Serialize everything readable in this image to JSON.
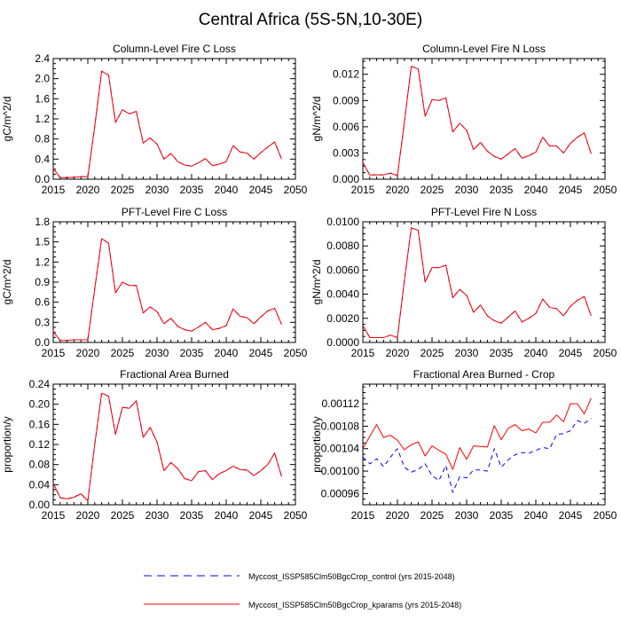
{
  "figure_title": "Central Africa (5S-5N,10-30E)",
  "legend": [
    {
      "label": "Myccost_ISSP585Clm50BgcCrop_control (yrs 2015-2048)",
      "color": "#0000ff",
      "style": "dashed"
    },
    {
      "label": "Myccost_ISSP585Clm50BgcCrop_kparams (yrs 2015-2048)",
      "color": "#ff0000",
      "style": "solid"
    }
  ],
  "chart_data": [
    {
      "type": "line",
      "title": "Column-Level Fire C Loss",
      "xlabel": "",
      "ylabel": "gC/m^2/d",
      "xlim": [
        2015,
        2050
      ],
      "ylim": [
        0,
        2.4
      ],
      "xticks": [
        "2015",
        "2020",
        "2025",
        "2030",
        "2035",
        "2040",
        "2045",
        "2050"
      ],
      "yticks": [
        "0.0",
        "0.4",
        "0.8",
        "1.2",
        "1.6",
        "2.0",
        "2.4"
      ],
      "x": [
        2015,
        2016,
        2017,
        2018,
        2019,
        2020,
        2021,
        2022,
        2023,
        2024,
        2025,
        2026,
        2027,
        2028,
        2029,
        2030,
        2031,
        2032,
        2033,
        2034,
        2035,
        2036,
        2037,
        2038,
        2039,
        2040,
        2041,
        2042,
        2043,
        2044,
        2045,
        2046,
        2047,
        2048
      ],
      "series": [
        {
          "name": "control",
          "color": "#0000ff",
          "style": "dashed",
          "values": [
            0.22,
            0.03,
            0.03,
            0.04,
            0.05,
            0.05,
            1.05,
            2.15,
            2.07,
            1.13,
            1.38,
            1.3,
            1.35,
            0.72,
            0.82,
            0.7,
            0.4,
            0.51,
            0.35,
            0.28,
            0.26,
            0.33,
            0.41,
            0.27,
            0.3,
            0.35,
            0.67,
            0.54,
            0.52,
            0.4,
            0.53,
            0.64,
            0.74,
            0.4
          ]
        },
        {
          "name": "kparams",
          "color": "#ff0000",
          "style": "solid",
          "values": [
            0.22,
            0.03,
            0.03,
            0.04,
            0.05,
            0.05,
            1.05,
            2.15,
            2.07,
            1.13,
            1.38,
            1.3,
            1.35,
            0.72,
            0.82,
            0.7,
            0.4,
            0.51,
            0.35,
            0.28,
            0.26,
            0.33,
            0.41,
            0.27,
            0.3,
            0.35,
            0.67,
            0.54,
            0.52,
            0.4,
            0.53,
            0.64,
            0.74,
            0.4
          ]
        }
      ]
    },
    {
      "type": "line",
      "title": "Column-Level Fire N Loss",
      "xlabel": "",
      "ylabel": "gN/m^2/d",
      "xlim": [
        2015,
        2050
      ],
      "ylim": [
        0,
        0.0138
      ],
      "xticks": [
        "2015",
        "2020",
        "2025",
        "2030",
        "2035",
        "2040",
        "2045",
        "2050"
      ],
      "yticks": [
        "0.000",
        "0.003",
        "0.006",
        "0.009",
        "0.012"
      ],
      "x": [
        2015,
        2016,
        2017,
        2018,
        2019,
        2020,
        2021,
        2022,
        2023,
        2024,
        2025,
        2026,
        2027,
        2028,
        2029,
        2030,
        2031,
        2032,
        2033,
        2034,
        2035,
        2036,
        2037,
        2038,
        2039,
        2040,
        2041,
        2042,
        2043,
        2044,
        2045,
        2046,
        2047,
        2048
      ],
      "series": [
        {
          "name": "control",
          "color": "#0000ff",
          "style": "dashed",
          "values": [
            0.0019,
            0.0005,
            0.0005,
            0.0005,
            0.0007,
            0.0004,
            0.0065,
            0.0129,
            0.0126,
            0.0072,
            0.0091,
            0.009,
            0.0093,
            0.0054,
            0.0064,
            0.0056,
            0.0034,
            0.0042,
            0.0032,
            0.0026,
            0.0023,
            0.0029,
            0.0035,
            0.0024,
            0.0027,
            0.0031,
            0.0048,
            0.0038,
            0.0038,
            0.003,
            0.0041,
            0.0048,
            0.0053,
            0.0029
          ]
        },
        {
          "name": "kparams",
          "color": "#ff0000",
          "style": "solid",
          "values": [
            0.0019,
            0.0005,
            0.0005,
            0.0005,
            0.0007,
            0.0004,
            0.0065,
            0.0129,
            0.0126,
            0.0072,
            0.0091,
            0.009,
            0.0093,
            0.0054,
            0.0064,
            0.0056,
            0.0034,
            0.0042,
            0.0032,
            0.0026,
            0.0023,
            0.0029,
            0.0035,
            0.0024,
            0.0027,
            0.0031,
            0.0048,
            0.0038,
            0.0038,
            0.003,
            0.0041,
            0.0048,
            0.0053,
            0.0029
          ]
        }
      ]
    },
    {
      "type": "line",
      "title": "PFT-Level Fire C Loss",
      "xlabel": "",
      "ylabel": "gC/m^2/d",
      "xlim": [
        2015,
        2050
      ],
      "ylim": [
        0,
        1.8
      ],
      "xticks": [
        "2015",
        "2020",
        "2025",
        "2030",
        "2035",
        "2040",
        "2045",
        "2050"
      ],
      "yticks": [
        "0.0",
        "0.3",
        "0.6",
        "0.9",
        "1.2",
        "1.5",
        "1.8"
      ],
      "x": [
        2015,
        2016,
        2017,
        2018,
        2019,
        2020,
        2021,
        2022,
        2023,
        2024,
        2025,
        2026,
        2027,
        2028,
        2029,
        2030,
        2031,
        2032,
        2033,
        2034,
        2035,
        2036,
        2037,
        2038,
        2039,
        2040,
        2041,
        2042,
        2043,
        2044,
        2045,
        2046,
        2047,
        2048
      ],
      "series": [
        {
          "name": "control",
          "color": "#0000ff",
          "style": "dashed",
          "values": [
            0.16,
            0.03,
            0.03,
            0.04,
            0.04,
            0.04,
            0.8,
            1.55,
            1.48,
            0.74,
            0.9,
            0.85,
            0.85,
            0.44,
            0.53,
            0.46,
            0.28,
            0.36,
            0.24,
            0.19,
            0.17,
            0.23,
            0.3,
            0.19,
            0.21,
            0.25,
            0.5,
            0.39,
            0.37,
            0.28,
            0.38,
            0.47,
            0.51,
            0.27
          ]
        },
        {
          "name": "kparams",
          "color": "#ff0000",
          "style": "solid",
          "values": [
            0.16,
            0.03,
            0.03,
            0.04,
            0.04,
            0.04,
            0.8,
            1.55,
            1.48,
            0.74,
            0.9,
            0.85,
            0.85,
            0.44,
            0.53,
            0.46,
            0.28,
            0.36,
            0.24,
            0.19,
            0.17,
            0.23,
            0.3,
            0.19,
            0.21,
            0.25,
            0.5,
            0.39,
            0.37,
            0.28,
            0.38,
            0.47,
            0.51,
            0.27
          ]
        }
      ]
    },
    {
      "type": "line",
      "title": "PFT-Level Fire N Loss",
      "xlabel": "",
      "ylabel": "gN/m^2/d",
      "xlim": [
        2015,
        2050
      ],
      "ylim": [
        0,
        0.01
      ],
      "xticks": [
        "2015",
        "2020",
        "2025",
        "2030",
        "2035",
        "2040",
        "2045",
        "2050"
      ],
      "yticks": [
        "0.0000",
        "0.0020",
        "0.0040",
        "0.0060",
        "0.0080",
        "0.0100"
      ],
      "x": [
        2015,
        2016,
        2017,
        2018,
        2019,
        2020,
        2021,
        2022,
        2023,
        2024,
        2025,
        2026,
        2027,
        2028,
        2029,
        2030,
        2031,
        2032,
        2033,
        2034,
        2035,
        2036,
        2037,
        2038,
        2039,
        2040,
        2041,
        2042,
        2043,
        2044,
        2045,
        2046,
        2047,
        2048
      ],
      "series": [
        {
          "name": "control",
          "color": "#0000ff",
          "style": "dashed",
          "values": [
            0.0014,
            0.0004,
            0.0004,
            0.0004,
            0.0006,
            0.0004,
            0.0051,
            0.0095,
            0.0093,
            0.005,
            0.0062,
            0.0062,
            0.0064,
            0.0037,
            0.0044,
            0.0039,
            0.0025,
            0.0031,
            0.0022,
            0.0018,
            0.0016,
            0.0021,
            0.0026,
            0.0017,
            0.002,
            0.0024,
            0.0036,
            0.0029,
            0.0028,
            0.0022,
            0.003,
            0.0035,
            0.0038,
            0.0022
          ]
        },
        {
          "name": "kparams",
          "color": "#ff0000",
          "style": "solid",
          "values": [
            0.0014,
            0.0004,
            0.0004,
            0.0004,
            0.0006,
            0.0004,
            0.0051,
            0.0095,
            0.0093,
            0.005,
            0.0062,
            0.0062,
            0.0064,
            0.0037,
            0.0044,
            0.0039,
            0.0025,
            0.0031,
            0.0022,
            0.0018,
            0.0016,
            0.0021,
            0.0026,
            0.0017,
            0.002,
            0.0024,
            0.0036,
            0.0029,
            0.0028,
            0.0022,
            0.003,
            0.0035,
            0.0038,
            0.0022
          ]
        }
      ]
    },
    {
      "type": "line",
      "title": "Fractional Area Burned",
      "xlabel": "",
      "ylabel": "proportion/y",
      "xlim": [
        2015,
        2050
      ],
      "ylim": [
        0,
        0.24
      ],
      "xticks": [
        "2015",
        "2020",
        "2025",
        "2030",
        "2035",
        "2040",
        "2045",
        "2050"
      ],
      "yticks": [
        "0.00",
        "0.04",
        "0.08",
        "0.12",
        "0.16",
        "0.20",
        "0.24"
      ],
      "x": [
        2015,
        2016,
        2017,
        2018,
        2019,
        2020,
        2021,
        2022,
        2023,
        2024,
        2025,
        2026,
        2027,
        2028,
        2029,
        2030,
        2031,
        2032,
        2033,
        2034,
        2035,
        2036,
        2037,
        2038,
        2039,
        2040,
        2041,
        2042,
        2043,
        2044,
        2045,
        2046,
        2047,
        2048
      ],
      "series": [
        {
          "name": "control",
          "color": "#0000ff",
          "style": "dashed",
          "values": [
            0.043,
            0.014,
            0.012,
            0.015,
            0.022,
            0.008,
            0.12,
            0.222,
            0.216,
            0.14,
            0.194,
            0.192,
            0.207,
            0.134,
            0.154,
            0.125,
            0.068,
            0.084,
            0.072,
            0.052,
            0.048,
            0.066,
            0.068,
            0.05,
            0.062,
            0.068,
            0.077,
            0.07,
            0.069,
            0.058,
            0.068,
            0.08,
            0.103,
            0.056
          ]
        },
        {
          "name": "kparams",
          "color": "#ff0000",
          "style": "solid",
          "values": [
            0.043,
            0.014,
            0.012,
            0.015,
            0.022,
            0.008,
            0.12,
            0.222,
            0.216,
            0.14,
            0.194,
            0.192,
            0.207,
            0.134,
            0.154,
            0.125,
            0.068,
            0.084,
            0.072,
            0.052,
            0.048,
            0.066,
            0.068,
            0.05,
            0.062,
            0.068,
            0.077,
            0.07,
            0.069,
            0.058,
            0.068,
            0.08,
            0.103,
            0.056
          ]
        }
      ]
    },
    {
      "type": "line",
      "title": "Fractional Area Burned - Crop",
      "xlabel": "",
      "ylabel": "proportion/y",
      "xlim": [
        2015,
        2050
      ],
      "ylim": [
        0.00094,
        0.001155
      ],
      "xticks": [
        "2015",
        "2020",
        "2025",
        "2030",
        "2035",
        "2040",
        "2045",
        "2050"
      ],
      "yticks": [
        "0.00096",
        "0.00100",
        "0.00104",
        "0.00108",
        "0.00112"
      ],
      "x": [
        2015,
        2016,
        2017,
        2018,
        2019,
        2020,
        2021,
        2022,
        2023,
        2024,
        2025,
        2026,
        2027,
        2028,
        2029,
        2030,
        2031,
        2032,
        2033,
        2034,
        2035,
        2036,
        2037,
        2038,
        2039,
        2040,
        2041,
        2042,
        2043,
        2044,
        2045,
        2046,
        2047,
        2048
      ],
      "series": [
        {
          "name": "control",
          "color": "#0000ff",
          "style": "dashed",
          "values": [
            0.001025,
            0.001013,
            0.001022,
            0.001008,
            0.001025,
            0.00104,
            0.001007,
            0.000998,
            0.001003,
            0.001013,
            0.000992,
            0.000983,
            0.00101,
            0.000962,
            0.00099,
            0.000988,
            0.001002,
            0.001002,
            0.001,
            0.00104,
            0.001007,
            0.00102,
            0.001029,
            0.001033,
            0.001032,
            0.001037,
            0.001042,
            0.00104,
            0.001065,
            0.001067,
            0.001072,
            0.00109,
            0.001085,
            0.001094
          ]
        },
        {
          "name": "kparams",
          "color": "#ff0000",
          "style": "solid",
          "values": [
            0.00104,
            0.001062,
            0.001083,
            0.00106,
            0.001064,
            0.001055,
            0.001038,
            0.001047,
            0.001052,
            0.001027,
            0.001045,
            0.001037,
            0.00103,
            0.001003,
            0.001042,
            0.001021,
            0.001045,
            0.001044,
            0.001043,
            0.001081,
            0.001056,
            0.001076,
            0.001083,
            0.001072,
            0.001075,
            0.001068,
            0.001087,
            0.001087,
            0.0011,
            0.001088,
            0.00112,
            0.00112,
            0.001102,
            0.00113
          ]
        }
      ]
    }
  ]
}
